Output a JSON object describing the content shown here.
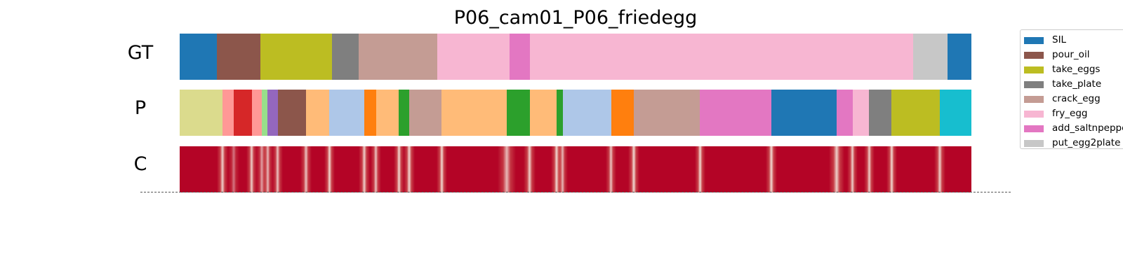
{
  "chart_data": {
    "type": "segmentation",
    "title": "P06_cam01_P06_friedegg",
    "rows": [
      "GT",
      "P",
      "C"
    ],
    "x_range": [
      0,
      1000
    ],
    "legend": {
      "placement": "right",
      "items": [
        {
          "label": "SIL",
          "color": "#1f77b4"
        },
        {
          "label": "pour_oil",
          "color": "#8c564b"
        },
        {
          "label": "take_eggs",
          "color": "#bcbd22"
        },
        {
          "label": "take_plate",
          "color": "#7f7f7f"
        },
        {
          "label": "crack_egg",
          "color": "#c49c94"
        },
        {
          "label": "fry_egg",
          "color": "#f7b6d2"
        },
        {
          "label": "add_saltnpepper",
          "color": "#e377c2"
        },
        {
          "label": "put_egg2plate",
          "color": "#c7c7c7"
        }
      ]
    },
    "gt_segments": [
      {
        "start": 0,
        "end": 47,
        "color": "#1f77b4"
      },
      {
        "start": 47,
        "end": 102,
        "color": "#8c564b"
      },
      {
        "start": 102,
        "end": 192,
        "color": "#bcbd22"
      },
      {
        "start": 192,
        "end": 226,
        "color": "#7f7f7f"
      },
      {
        "start": 226,
        "end": 325,
        "color": "#c49c94"
      },
      {
        "start": 325,
        "end": 417,
        "color": "#f7b6d2"
      },
      {
        "start": 417,
        "end": 442,
        "color": "#e377c2"
      },
      {
        "start": 442,
        "end": 926,
        "color": "#f7b6d2"
      },
      {
        "start": 926,
        "end": 970,
        "color": "#c7c7c7"
      },
      {
        "start": 970,
        "end": 1000,
        "color": "#1f77b4"
      }
    ],
    "p_segments": [
      {
        "start": 0,
        "end": 54,
        "color": "#dbdb8d"
      },
      {
        "start": 54,
        "end": 68,
        "color": "#ff9896"
      },
      {
        "start": 68,
        "end": 91,
        "color": "#d62728"
      },
      {
        "start": 91,
        "end": 104,
        "color": "#ff9896"
      },
      {
        "start": 104,
        "end": 111,
        "color": "#98df8a"
      },
      {
        "start": 111,
        "end": 124,
        "color": "#9467bd"
      },
      {
        "start": 124,
        "end": 160,
        "color": "#8c564b"
      },
      {
        "start": 160,
        "end": 189,
        "color": "#ffbb78"
      },
      {
        "start": 189,
        "end": 233,
        "color": "#aec7e8"
      },
      {
        "start": 233,
        "end": 248,
        "color": "#ff7f0e"
      },
      {
        "start": 248,
        "end": 277,
        "color": "#ffbb78"
      },
      {
        "start": 277,
        "end": 290,
        "color": "#2ca02c"
      },
      {
        "start": 290,
        "end": 331,
        "color": "#c49c94"
      },
      {
        "start": 331,
        "end": 413,
        "color": "#ffbb78"
      },
      {
        "start": 413,
        "end": 442,
        "color": "#2ca02c"
      },
      {
        "start": 442,
        "end": 476,
        "color": "#ffbb78"
      },
      {
        "start": 476,
        "end": 484,
        "color": "#2ca02c"
      },
      {
        "start": 484,
        "end": 545,
        "color": "#aec7e8"
      },
      {
        "start": 545,
        "end": 574,
        "color": "#ff7f0e"
      },
      {
        "start": 574,
        "end": 657,
        "color": "#c49c94"
      },
      {
        "start": 657,
        "end": 747,
        "color": "#e377c2"
      },
      {
        "start": 747,
        "end": 830,
        "color": "#1f77b4"
      },
      {
        "start": 830,
        "end": 850,
        "color": "#e377c2"
      },
      {
        "start": 850,
        "end": 871,
        "color": "#f7b6d2"
      },
      {
        "start": 871,
        "end": 899,
        "color": "#7f7f7f"
      },
      {
        "start": 899,
        "end": 960,
        "color": "#bcbd22"
      },
      {
        "start": 960,
        "end": 1000,
        "color": "#17becf"
      }
    ],
    "c_base_color": "#b40426",
    "c_dips": [
      {
        "pos": 54,
        "depth": 0.9,
        "width": 4
      },
      {
        "pos": 68,
        "depth": 0.5,
        "width": 4
      },
      {
        "pos": 91,
        "depth": 0.9,
        "width": 3
      },
      {
        "pos": 104,
        "depth": 0.7,
        "width": 4
      },
      {
        "pos": 111,
        "depth": 0.8,
        "width": 3
      },
      {
        "pos": 124,
        "depth": 0.85,
        "width": 3
      },
      {
        "pos": 160,
        "depth": 0.85,
        "width": 4
      },
      {
        "pos": 189,
        "depth": 0.95,
        "width": 3
      },
      {
        "pos": 233,
        "depth": 0.9,
        "width": 4
      },
      {
        "pos": 248,
        "depth": 0.85,
        "width": 3
      },
      {
        "pos": 277,
        "depth": 0.95,
        "width": 3
      },
      {
        "pos": 290,
        "depth": 0.95,
        "width": 4
      },
      {
        "pos": 331,
        "depth": 0.95,
        "width": 3
      },
      {
        "pos": 413,
        "depth": 0.8,
        "width": 14
      },
      {
        "pos": 442,
        "depth": 0.9,
        "width": 5
      },
      {
        "pos": 476,
        "depth": 0.95,
        "width": 4
      },
      {
        "pos": 484,
        "depth": 0.8,
        "width": 3
      },
      {
        "pos": 545,
        "depth": 0.85,
        "width": 3
      },
      {
        "pos": 574,
        "depth": 0.95,
        "width": 4
      },
      {
        "pos": 657,
        "depth": 0.95,
        "width": 3
      },
      {
        "pos": 747,
        "depth": 0.95,
        "width": 4
      },
      {
        "pos": 830,
        "depth": 0.9,
        "width": 10
      },
      {
        "pos": 850,
        "depth": 0.9,
        "width": 3
      },
      {
        "pos": 871,
        "depth": 0.9,
        "width": 3
      },
      {
        "pos": 899,
        "depth": 0.95,
        "width": 3
      },
      {
        "pos": 960,
        "depth": 0.9,
        "width": 4
      }
    ]
  }
}
